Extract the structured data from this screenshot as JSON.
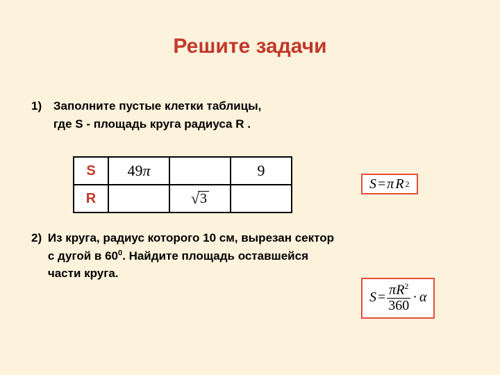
{
  "title": "Решите задачи",
  "task1": {
    "number": "1)",
    "line1": "Заполните пустые клетки таблицы,",
    "line2": "где S - площадь круга радиуса R ."
  },
  "table": {
    "row1": {
      "head": "S",
      "c1_value": "49",
      "c1_pi": "π",
      "c2": "",
      "c3": "9"
    },
    "row2": {
      "head": "R",
      "c1": "",
      "c2_sqrt_of": "3",
      "c3": ""
    }
  },
  "formula1": {
    "S": "S",
    "eq": " = ",
    "pi": "π",
    "R": "R",
    "sq": "2"
  },
  "task2": {
    "number": "2)",
    "line1": "Из круга, радиус которого 10 см, вырезан сектор",
    "line2_a": "с дугой в 60",
    "line2_sup": "0",
    "line2_b": ". Найдите площадь оставшейся",
    "line3": "части круга."
  },
  "formula2": {
    "S": "S",
    "eq": " = ",
    "num_pi": "π",
    "num_R": "R",
    "num_sq": "2",
    "den": "360",
    "dot": "·",
    "alpha": "α"
  },
  "colors": {
    "background": "#fdf2dc",
    "accent": "#c0392b",
    "formula_border": "#e74c3c"
  }
}
